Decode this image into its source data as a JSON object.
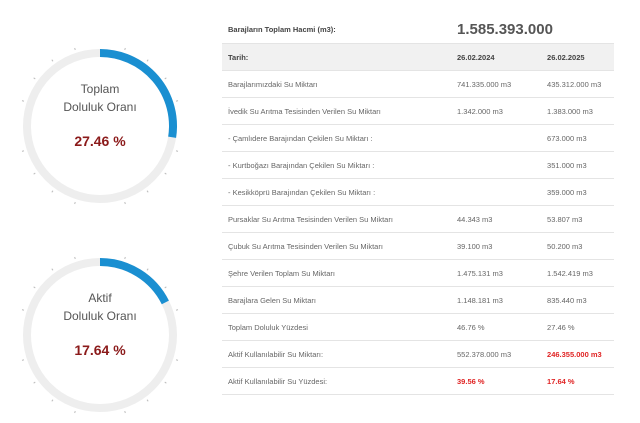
{
  "colors": {
    "accent": "#1a8fd1",
    "track": "#eeeeee",
    "value": "#8b1a1a",
    "highlight": "#e02424"
  },
  "gauges": [
    {
      "line1": "Toplam",
      "line2": "Doluluk Oranı",
      "value_text": "27.46 %",
      "fraction": 0.2746
    },
    {
      "line1": "Aktif",
      "line2": "Doluluk Oranı",
      "value_text": "17.64 %",
      "fraction": 0.1764
    }
  ],
  "table": {
    "header_label": "Barajların Toplam Hacmi (m3):",
    "header_value": "1.585.393.000",
    "date_label": "Tarih:",
    "date1": "26.02.2024",
    "date2": "26.02.2025",
    "rows": [
      {
        "label": "Barajlarımızdaki Su Miktarı",
        "v1": "741.335.000 m3",
        "v2": "435.312.000 m3"
      },
      {
        "label": "İvedik Su Arıtma Tesisinden Verilen Su Miktarı",
        "v1": "1.342.000 m3",
        "v2": "1.383.000 m3"
      },
      {
        "label": "- Çamlıdere Barajından Çekilen Su Miktarı :",
        "v1": "",
        "v2": "673.000 m3"
      },
      {
        "label": "- Kurtboğazı Barajından Çekilen Su Miktarı :",
        "v1": "",
        "v2": "351.000 m3"
      },
      {
        "label": "- Kesikköprü Barajından Çekilen Su Miktarı :",
        "v1": "",
        "v2": "359.000 m3"
      },
      {
        "label": "Pursaklar Su Arıtma Tesisinden Verilen Su Miktarı",
        "v1": "44.343 m3",
        "v2": "53.807 m3"
      },
      {
        "label": "Çubuk Su Arıtma Tesisinden Verilen Su Miktarı",
        "v1": "39.100 m3",
        "v2": "50.200 m3"
      },
      {
        "label": "Şehre Verilen Toplam Su Miktarı",
        "v1": "1.475.131 m3",
        "v2": "1.542.419 m3"
      },
      {
        "label": "Barajlara Gelen Su Miktarı",
        "v1": "1.148.181 m3",
        "v2": "835.440 m3"
      },
      {
        "label": "Toplam Doluluk Yüzdesi",
        "v1": "46.76 %",
        "v2": "27.46 %"
      },
      {
        "label": "Aktif Kullanılabilir Su Miktarı:",
        "v1": "552.378.000 m3",
        "v2": "246.355.000 m3"
      },
      {
        "label": "Aktif Kullanılabilir Su Yüzdesi:",
        "v1": "39.56 %",
        "v2": "17.64 %"
      }
    ]
  }
}
